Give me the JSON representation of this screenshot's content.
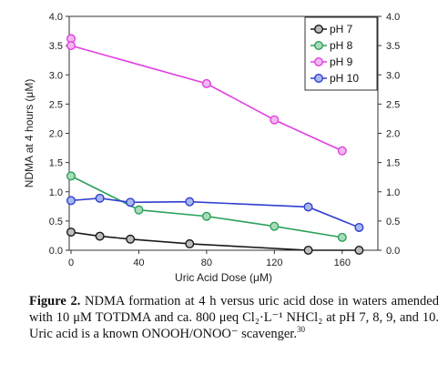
{
  "chart_data": {
    "type": "line",
    "title": "",
    "xlabel": "Uric Acid Dose (μM)",
    "ylabel": "NDMA at 4 hours (μM)",
    "xlim": [
      0,
      180
    ],
    "ylim": [
      0,
      4.0
    ],
    "x_ticks": [
      "0",
      "40",
      "80",
      "120",
      "160"
    ],
    "y_ticks": [
      "0.0",
      "0.5",
      "1.0",
      "1.5",
      "2.0",
      "2.5",
      "3.0",
      "3.5",
      "4.0"
    ],
    "y2_ticks": [
      "0.0",
      "0.5",
      "1.0",
      "1.5",
      "2.0",
      "2.5",
      "3.0",
      "3.5",
      "4.0"
    ],
    "grid": false,
    "legend_position": "top-right",
    "series": [
      {
        "name": "pH 7",
        "color": "#1a1a1a",
        "fill": "#bdbdbd",
        "x": [
          0,
          17,
          35,
          70,
          140,
          170
        ],
        "y": [
          0.31,
          0.24,
          0.19,
          0.11,
          0.0,
          0.0
        ]
      },
      {
        "name": "pH 8",
        "color": "#2aa15a",
        "fill": "#a8dcb8",
        "x": [
          0,
          40,
          80,
          120,
          160
        ],
        "y": [
          1.27,
          0.69,
          0.58,
          0.41,
          0.22
        ]
      },
      {
        "name": "pH 9",
        "color": "#e040e0",
        "fill": "#f2b8f0",
        "x": [
          0,
          0,
          80,
          120,
          160
        ],
        "y": [
          3.62,
          3.5,
          2.85,
          2.23,
          1.7
        ]
      },
      {
        "name": "pH 10",
        "color": "#2f3fd0",
        "fill": "#aab8f0",
        "x": [
          0,
          17,
          35,
          70,
          140,
          170
        ],
        "y": [
          0.85,
          0.89,
          0.82,
          0.83,
          0.74,
          0.39
        ]
      }
    ]
  },
  "caption": {
    "label": "Figure 2.",
    "text": " NDMA formation at 4 h versus uric acid dose in waters amended with 10 μM TOTDMA and ca. 800 μeq Cl₂·L⁻¹ NHCl₂ at pH 7, 8, 9, and 10. Uric acid is a known ONOOH/ONOO⁻ scavenger.",
    "ref": "30"
  }
}
